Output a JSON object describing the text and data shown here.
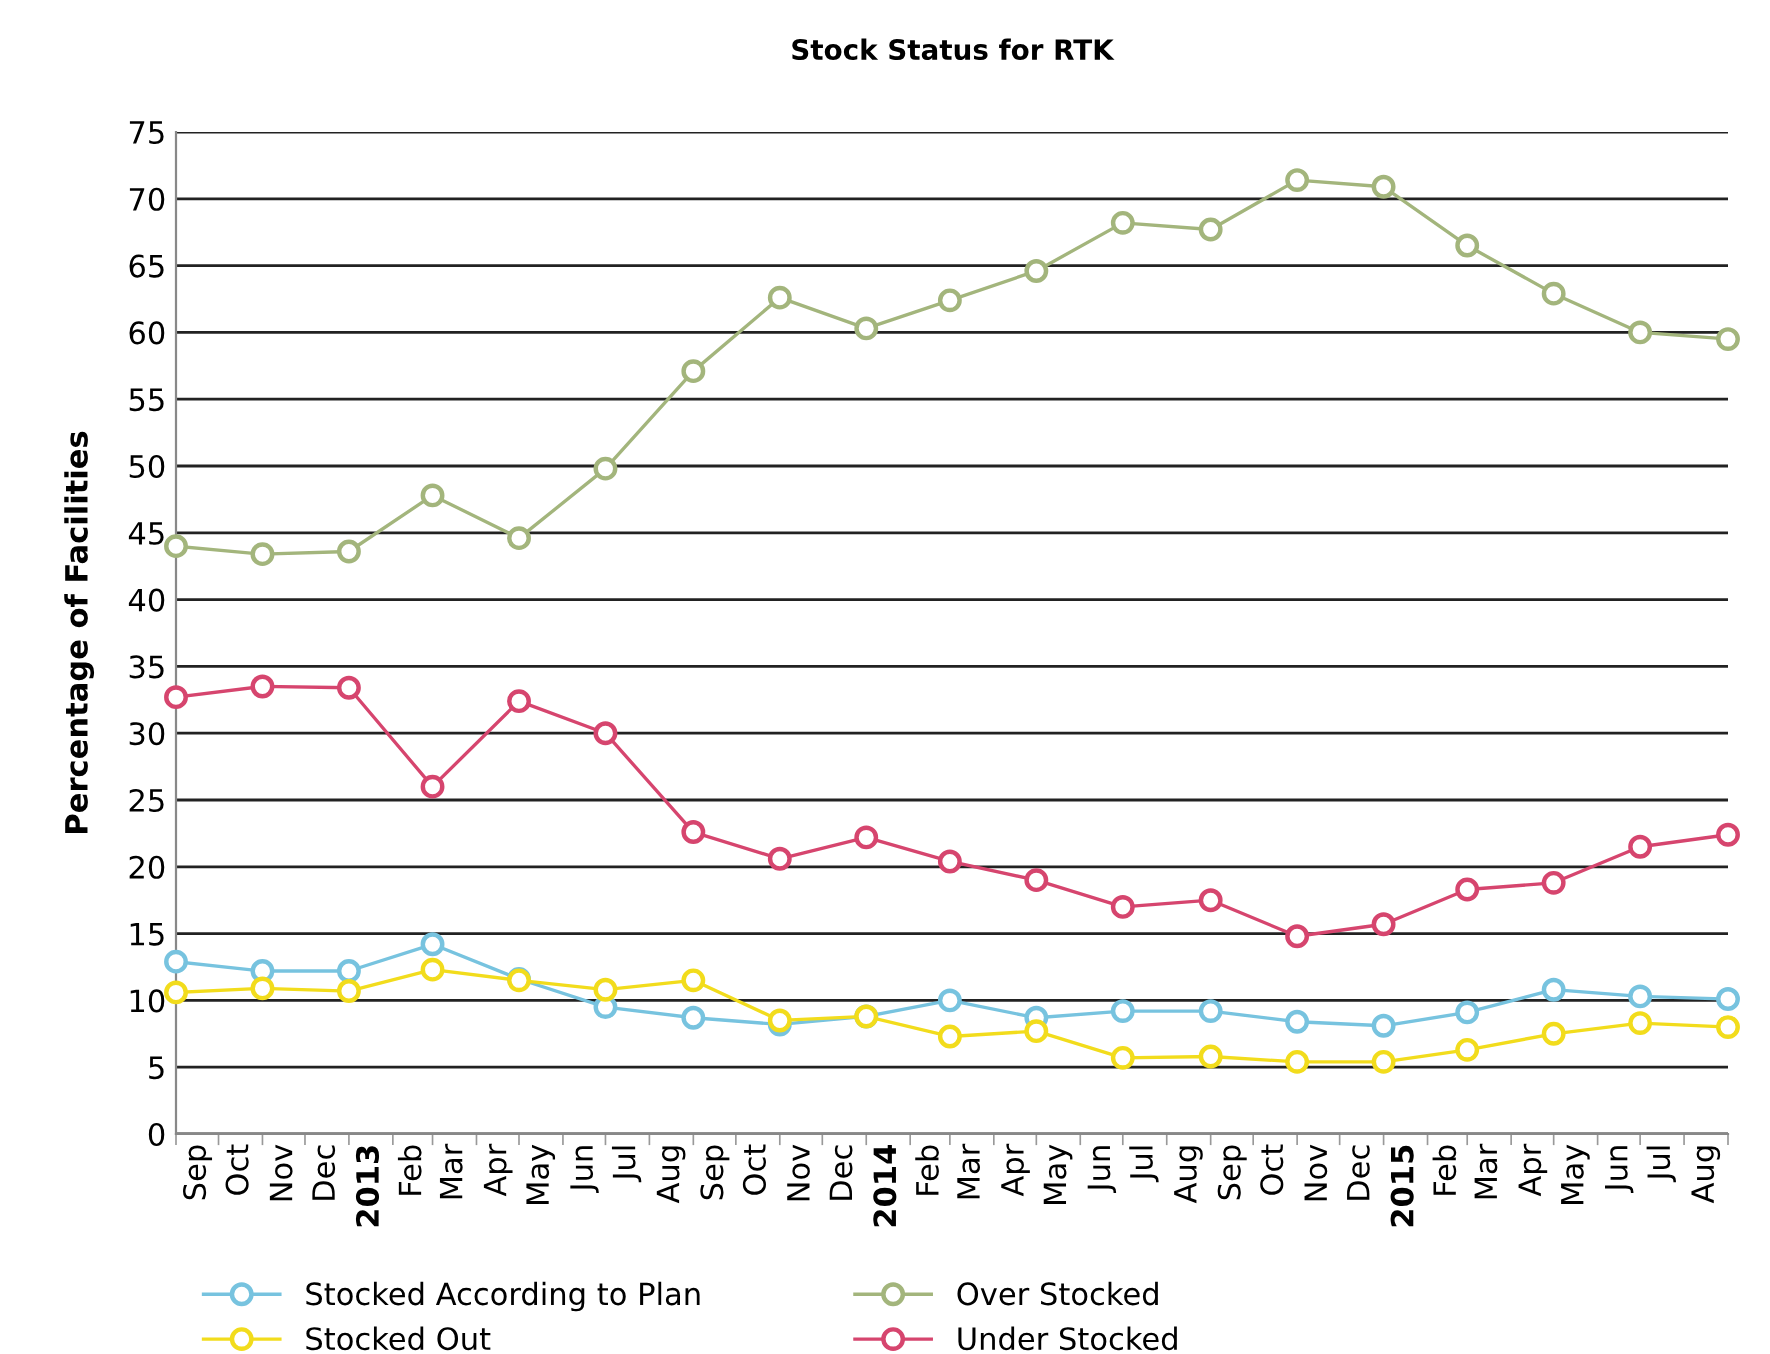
{
  "chart_data": {
    "type": "line",
    "title": "Stock Status for RTK",
    "ylabel": "Percentage of Facilities",
    "x": [
      "2012-09-01",
      "2012-11-01",
      "2013-01-01",
      "2013-03-01",
      "2013-05-01",
      "2013-07-01",
      "2013-09-01",
      "2013-11-01",
      "2014-01-01",
      "2014-03-01",
      "2014-05-01",
      "2014-07-01",
      "2014-09-01",
      "2014-11-01",
      "2015-01-01",
      "2015-03-01",
      "2015-05-01",
      "2015-07-01",
      "2015-09-01"
    ],
    "series": [
      {
        "name": "Stocked According to Plan",
        "color": "#77c3df",
        "values": [
          12.9,
          12.2,
          12.2,
          14.2,
          11.6,
          9.5,
          8.7,
          8.2,
          8.8,
          10.0,
          8.7,
          9.2,
          9.2,
          8.4,
          8.1,
          9.1,
          10.8,
          10.3,
          10.1
        ]
      },
      {
        "name": "Stocked Out",
        "color": "#f2dc1c",
        "values": [
          10.6,
          10.9,
          10.7,
          12.3,
          11.5,
          10.8,
          11.5,
          8.5,
          8.8,
          7.3,
          7.7,
          5.7,
          5.8,
          5.4,
          5.4,
          6.3,
          7.5,
          8.3,
          8.0
        ]
      },
      {
        "name": "Over Stocked",
        "color": "#a3b57c",
        "values": [
          44.0,
          43.4,
          43.6,
          47.8,
          44.6,
          49.8,
          57.1,
          62.6,
          60.3,
          62.4,
          64.6,
          68.2,
          67.7,
          71.4,
          70.9,
          66.5,
          62.9,
          60.0,
          59.5
        ]
      },
      {
        "name": "Under Stocked",
        "color": "#d6456e",
        "values": [
          32.7,
          33.5,
          33.4,
          26.0,
          32.4,
          30.0,
          22.6,
          20.6,
          22.2,
          20.4,
          19.0,
          17.0,
          17.5,
          14.8,
          15.7,
          18.3,
          18.8,
          21.5,
          22.4
        ]
      }
    ],
    "xlim": [
      "2012-09-01",
      "2015-09-01"
    ],
    "xticks": [
      {
        "value": "2012-09-16",
        "label": "Sep"
      },
      {
        "value": "2012-10-16",
        "label": "Oct"
      },
      {
        "value": "2012-11-16",
        "label": "Nov"
      },
      {
        "value": "2012-12-16",
        "label": "Dec"
      },
      {
        "value": "2013-01-16",
        "label": "2013"
      },
      {
        "value": "2013-02-15",
        "label": "Feb"
      },
      {
        "value": "2013-03-16",
        "label": "Mar"
      },
      {
        "value": "2013-04-16",
        "label": "Apr"
      },
      {
        "value": "2013-05-16",
        "label": "May"
      },
      {
        "value": "2013-06-16",
        "label": "Jun"
      },
      {
        "value": "2013-07-16",
        "label": "Jul"
      },
      {
        "value": "2013-08-16",
        "label": "Aug"
      },
      {
        "value": "2013-09-16",
        "label": "Sep"
      },
      {
        "value": "2013-10-16",
        "label": "Oct"
      },
      {
        "value": "2013-11-16",
        "label": "Nov"
      },
      {
        "value": "2013-12-16",
        "label": "Dec"
      },
      {
        "value": "2014-01-16",
        "label": "2014"
      },
      {
        "value": "2014-02-15",
        "label": "Feb"
      },
      {
        "value": "2014-03-16",
        "label": "Mar"
      },
      {
        "value": "2014-04-16",
        "label": "Apr"
      },
      {
        "value": "2014-05-16",
        "label": "May"
      },
      {
        "value": "2014-06-16",
        "label": "Jun"
      },
      {
        "value": "2014-07-16",
        "label": "Jul"
      },
      {
        "value": "2014-08-16",
        "label": "Aug"
      },
      {
        "value": "2014-09-16",
        "label": "Sep"
      },
      {
        "value": "2014-10-16",
        "label": "Oct"
      },
      {
        "value": "2014-11-16",
        "label": "Nov"
      },
      {
        "value": "2014-12-16",
        "label": "Dec"
      },
      {
        "value": "2015-01-16",
        "label": "2015"
      },
      {
        "value": "2015-02-15",
        "label": "Feb"
      },
      {
        "value": "2015-03-16",
        "label": "Mar"
      },
      {
        "value": "2015-04-16",
        "label": "Apr"
      },
      {
        "value": "2015-05-16",
        "label": "May"
      },
      {
        "value": "2015-06-16",
        "label": "Jun"
      },
      {
        "value": "2015-07-16",
        "label": "Jul"
      },
      {
        "value": "2015-08-16",
        "label": "Aug"
      }
    ],
    "ylim": [
      0,
      75
    ],
    "yticks": [
      0,
      5,
      10,
      15,
      20,
      25,
      30,
      35,
      40,
      45,
      50,
      55,
      60,
      65,
      70,
      75
    ],
    "grid": "y",
    "legend": "bottom",
    "marker": "circle",
    "line_style": "solid"
  }
}
